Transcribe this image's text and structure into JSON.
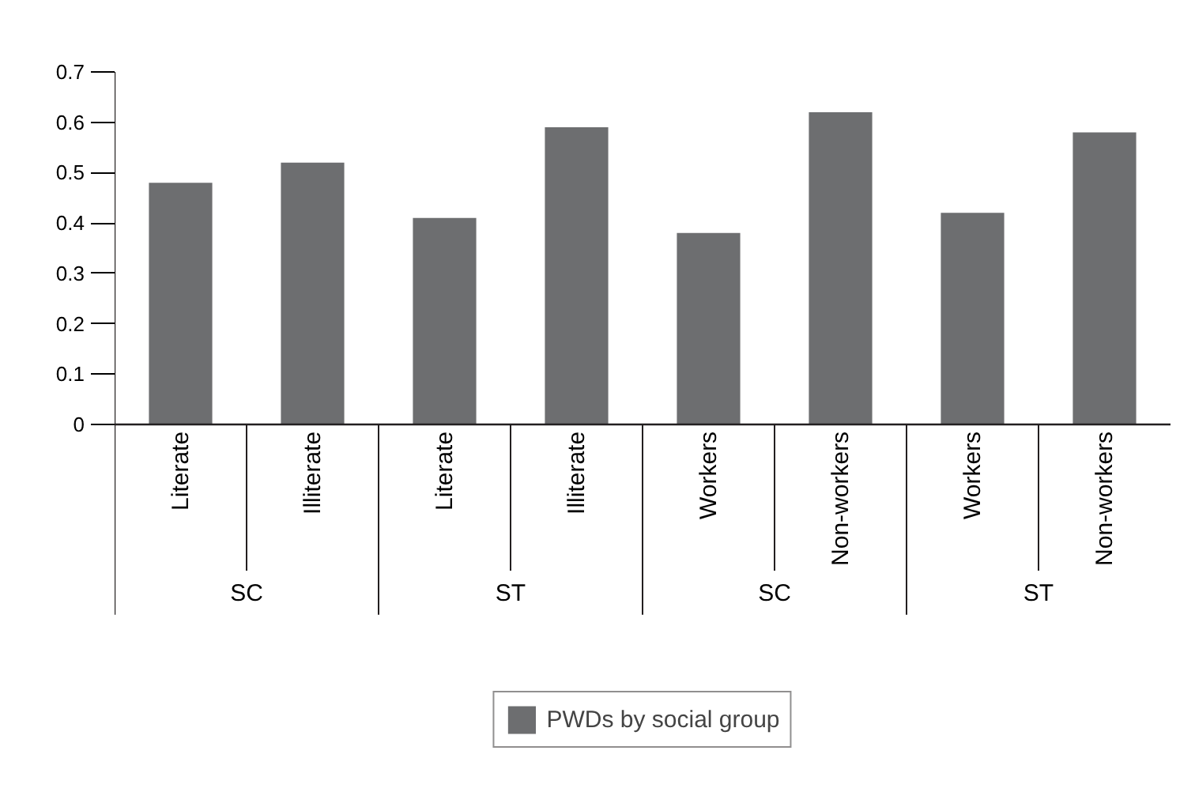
{
  "chart_data": {
    "type": "bar",
    "categories": [
      "Literate",
      "Illiterate",
      "Literate",
      "Illiterate",
      "Workers",
      "Non-workers",
      "Workers",
      "Non-workers"
    ],
    "series": [
      {
        "name": "PWDs by social group",
        "color": "#6d6e70",
        "values": [
          0.48,
          0.52,
          0.41,
          0.59,
          0.38,
          0.62,
          0.42,
          0.58
        ]
      }
    ],
    "annotations": [
      "SC",
      "ST",
      "SC",
      "ST"
    ],
    "ylim": [
      0,
      0.7
    ],
    "yticks": [
      0,
      0.1,
      0.2,
      0.3,
      0.4,
      0.5,
      0.6,
      0.7
    ],
    "legend": "bottom"
  }
}
